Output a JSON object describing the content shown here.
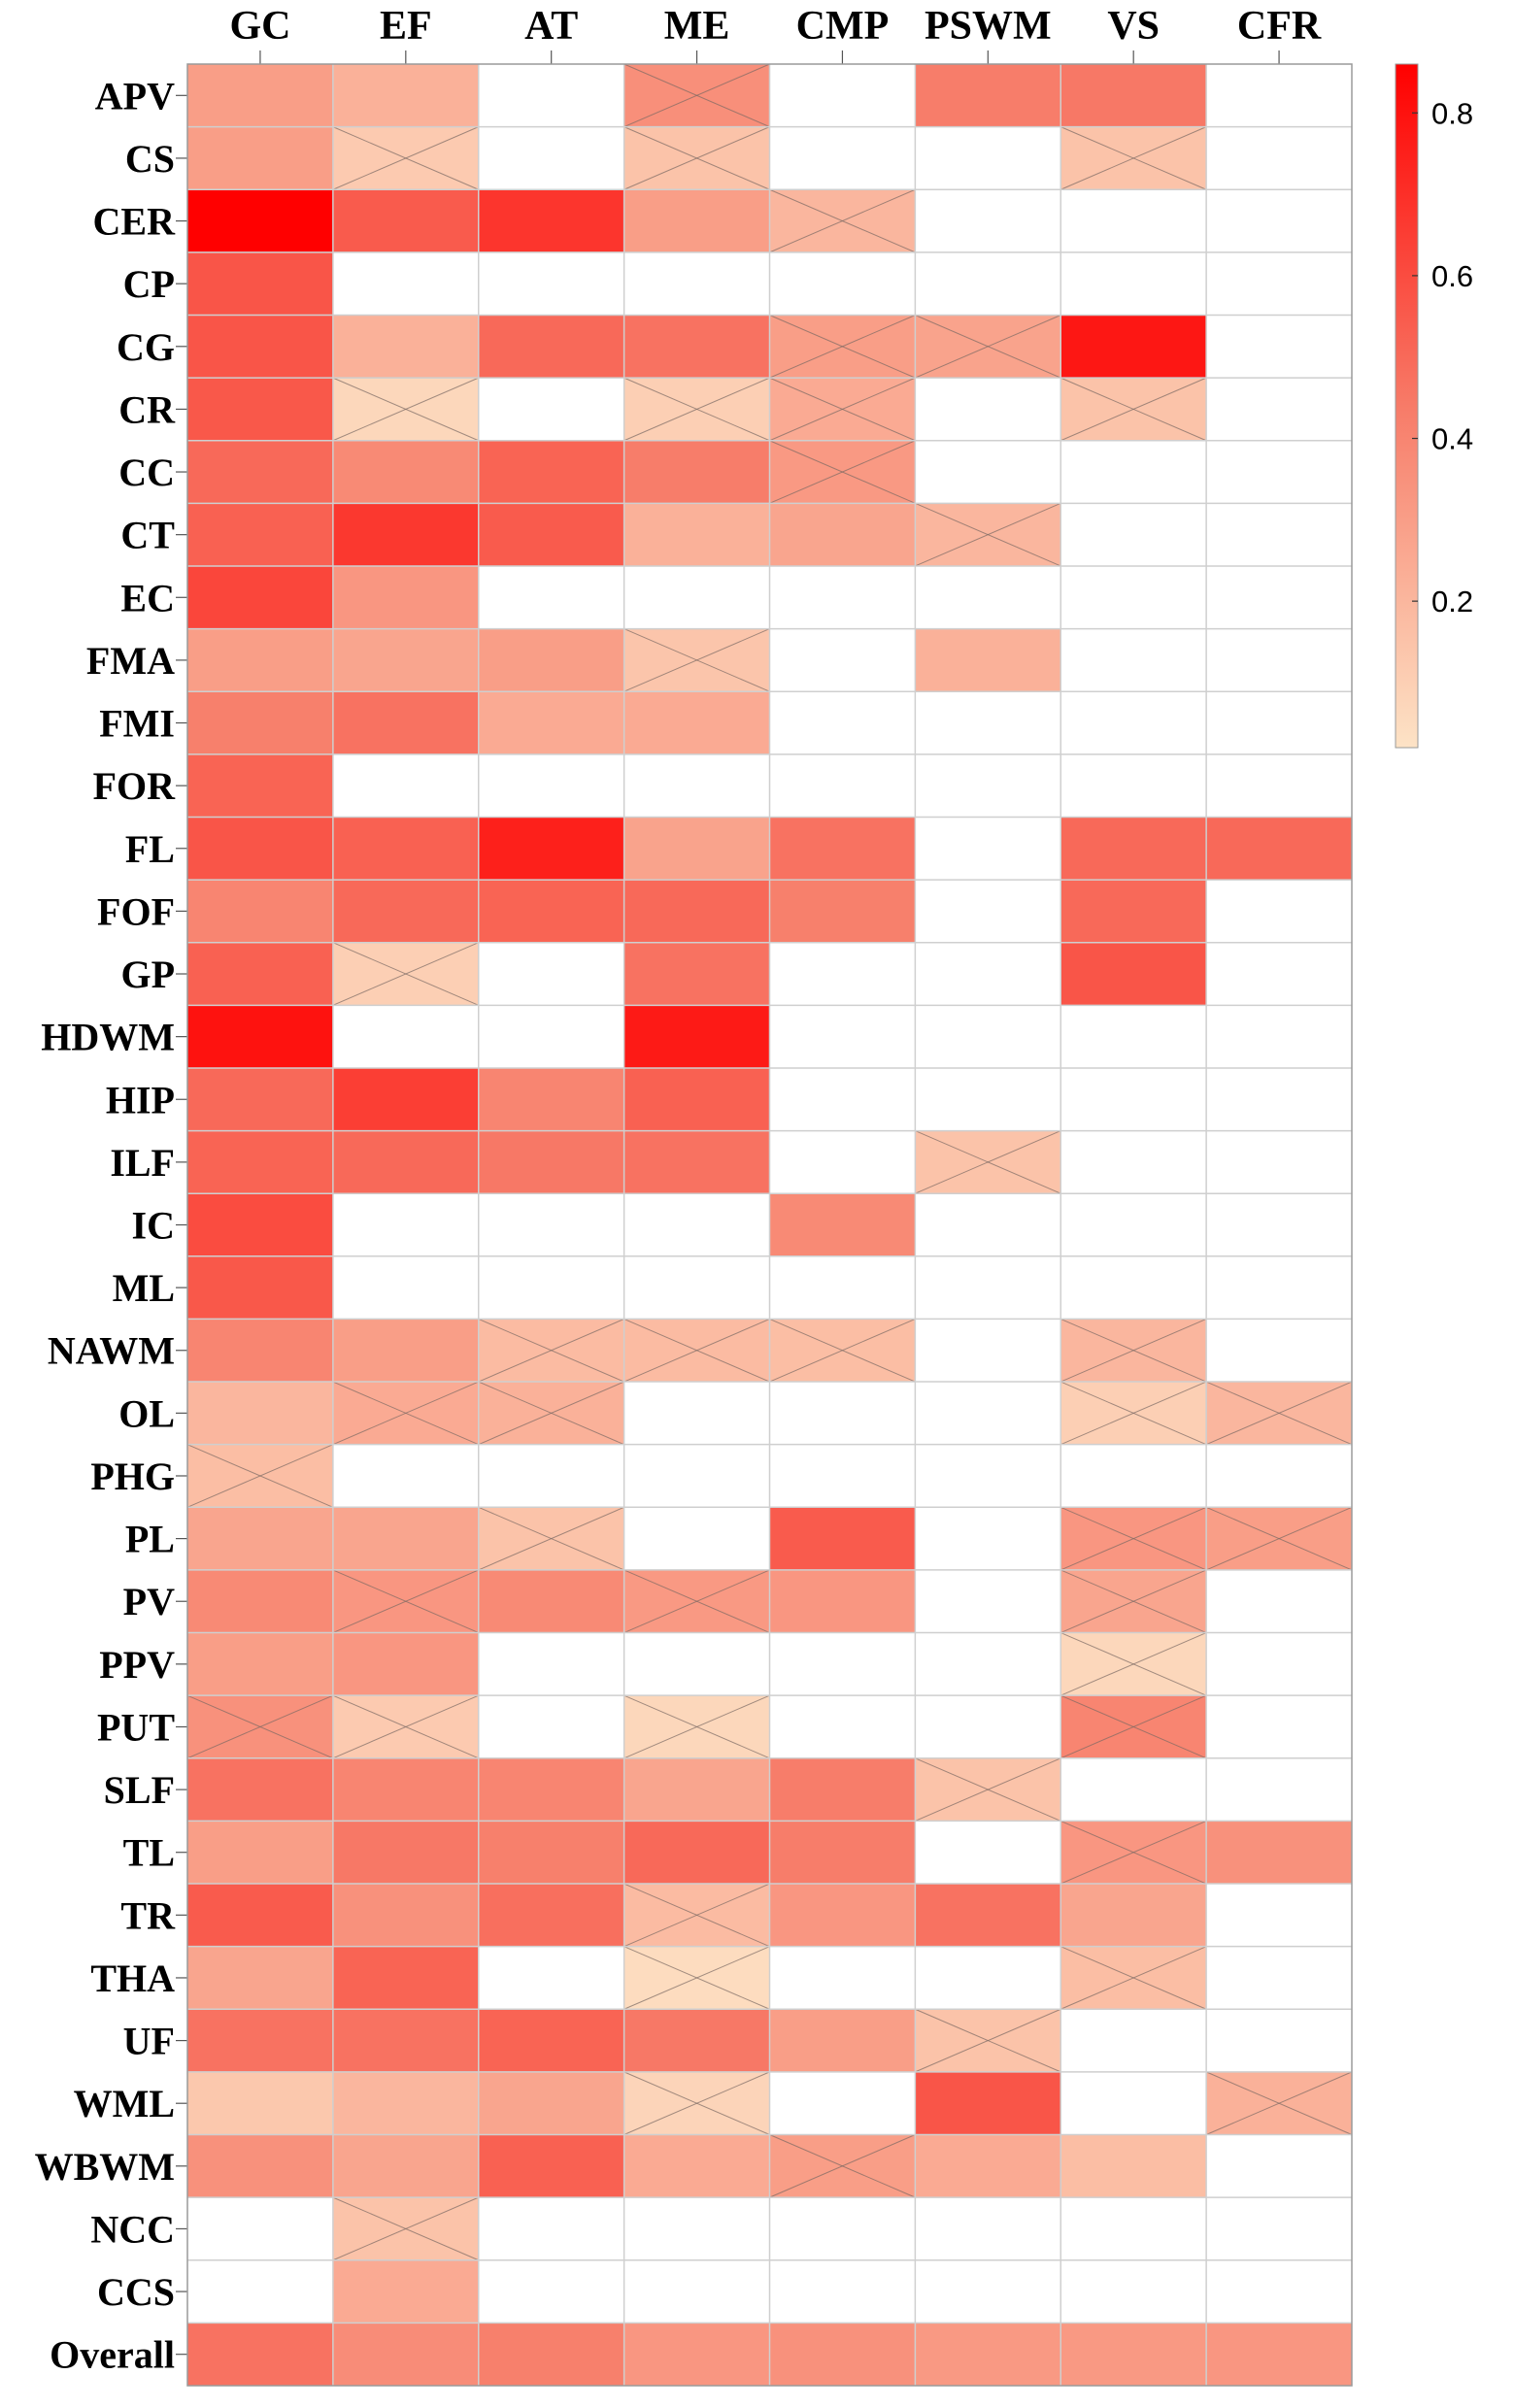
{
  "chart_data": {
    "type": "heatmap",
    "columns": [
      "GC",
      "EF",
      "AT",
      "ME",
      "CMP",
      "PSWM",
      "VS",
      "CFR"
    ],
    "rows": [
      "APV",
      "CS",
      "CER",
      "CP",
      "CG",
      "CR",
      "CC",
      "CT",
      "EC",
      "FMA",
      "FMI",
      "FOR",
      "FL",
      "FOF",
      "GP",
      "HDWM",
      "HIP",
      "ILF",
      "IC",
      "ML",
      "NAWM",
      "OL",
      "PHG",
      "PL",
      "PV",
      "PPV",
      "PUT",
      "SLF",
      "TL",
      "TR",
      "THA",
      "UF",
      "WML",
      "WBWM",
      "NCC",
      "CCS",
      "Overall"
    ],
    "values": [
      [
        0.3,
        0.22,
        null,
        0.36,
        null,
        0.43,
        0.45,
        null
      ],
      [
        0.3,
        0.12,
        null,
        0.15,
        null,
        null,
        0.15,
        null
      ],
      [
        0.86,
        0.55,
        0.68,
        0.3,
        0.2,
        null,
        null,
        null
      ],
      [
        0.57,
        null,
        null,
        null,
        null,
        null,
        null,
        null
      ],
      [
        0.57,
        0.22,
        0.5,
        0.47,
        0.3,
        0.28,
        0.78,
        null
      ],
      [
        0.56,
        0.07,
        null,
        0.1,
        0.25,
        null,
        0.15,
        null
      ],
      [
        0.5,
        0.38,
        0.52,
        0.43,
        0.32,
        null,
        null,
        null
      ],
      [
        0.53,
        0.67,
        0.55,
        0.22,
        0.27,
        0.2,
        null,
        null
      ],
      [
        0.62,
        0.33,
        null,
        null,
        null,
        null,
        null,
        null
      ],
      [
        0.3,
        0.27,
        0.3,
        0.14,
        null,
        0.22,
        null,
        null
      ],
      [
        0.42,
        0.47,
        0.25,
        0.25,
        null,
        null,
        null,
        null
      ],
      [
        0.52,
        null,
        null,
        null,
        null,
        null,
        null,
        null
      ],
      [
        0.57,
        0.53,
        0.75,
        0.28,
        0.47,
        null,
        0.5,
        0.5
      ],
      [
        0.4,
        0.5,
        0.52,
        0.5,
        0.42,
        null,
        0.5,
        null
      ],
      [
        0.53,
        0.1,
        null,
        0.47,
        null,
        null,
        0.57,
        null
      ],
      [
        0.8,
        null,
        null,
        0.77,
        null,
        null,
        null,
        null
      ],
      [
        0.5,
        0.65,
        0.4,
        0.53,
        null,
        null,
        null,
        null
      ],
      [
        0.52,
        0.5,
        0.45,
        0.47,
        null,
        0.15,
        null,
        null
      ],
      [
        0.6,
        null,
        null,
        null,
        0.38,
        null,
        null,
        null
      ],
      [
        0.56,
        null,
        null,
        null,
        null,
        null,
        null,
        null
      ],
      [
        0.4,
        0.3,
        0.18,
        0.18,
        0.17,
        null,
        0.2,
        null
      ],
      [
        0.2,
        0.25,
        0.22,
        null,
        null,
        null,
        0.1,
        0.2
      ],
      [
        0.17,
        null,
        null,
        null,
        null,
        null,
        null,
        null
      ],
      [
        0.27,
        0.27,
        0.15,
        null,
        0.55,
        null,
        0.33,
        0.3
      ],
      [
        0.38,
        0.33,
        0.38,
        0.32,
        0.33,
        null,
        0.27,
        null
      ],
      [
        0.3,
        0.33,
        null,
        null,
        null,
        null,
        0.07,
        null
      ],
      [
        0.35,
        0.12,
        null,
        0.07,
        null,
        null,
        0.4,
        null
      ],
      [
        0.47,
        0.4,
        0.4,
        0.27,
        0.43,
        0.15,
        null,
        null
      ],
      [
        0.3,
        0.45,
        0.42,
        0.5,
        0.43,
        null,
        0.33,
        0.35
      ],
      [
        0.55,
        0.35,
        0.48,
        0.18,
        0.33,
        0.47,
        0.27,
        null
      ],
      [
        0.27,
        0.52,
        null,
        0.05,
        null,
        null,
        0.17,
        null
      ],
      [
        0.47,
        0.47,
        0.52,
        0.45,
        0.3,
        0.15,
        null,
        null
      ],
      [
        0.13,
        0.2,
        0.27,
        0.08,
        null,
        0.57,
        null,
        0.22
      ],
      [
        0.35,
        0.27,
        0.53,
        0.25,
        0.3,
        0.25,
        0.17,
        null
      ],
      [
        null,
        0.15,
        null,
        null,
        null,
        null,
        null,
        null
      ],
      [
        null,
        0.25,
        null,
        null,
        null,
        null,
        null,
        null
      ],
      [
        0.47,
        0.37,
        0.42,
        0.33,
        0.35,
        0.32,
        0.32,
        0.33
      ]
    ],
    "crossed": [
      [
        false,
        false,
        false,
        true,
        false,
        false,
        false,
        false
      ],
      [
        false,
        true,
        false,
        true,
        false,
        false,
        true,
        false
      ],
      [
        false,
        false,
        false,
        false,
        true,
        false,
        false,
        false
      ],
      [
        false,
        false,
        false,
        false,
        false,
        false,
        false,
        false
      ],
      [
        false,
        false,
        false,
        false,
        true,
        true,
        false,
        false
      ],
      [
        false,
        true,
        false,
        true,
        true,
        false,
        true,
        false
      ],
      [
        false,
        false,
        false,
        false,
        true,
        false,
        false,
        false
      ],
      [
        false,
        false,
        false,
        false,
        false,
        true,
        false,
        false
      ],
      [
        false,
        false,
        false,
        false,
        false,
        false,
        false,
        false
      ],
      [
        false,
        false,
        false,
        true,
        false,
        false,
        false,
        false
      ],
      [
        false,
        false,
        false,
        false,
        false,
        false,
        false,
        false
      ],
      [
        false,
        false,
        false,
        false,
        false,
        false,
        false,
        false
      ],
      [
        false,
        false,
        false,
        false,
        false,
        false,
        false,
        false
      ],
      [
        false,
        false,
        false,
        false,
        false,
        false,
        false,
        false
      ],
      [
        false,
        true,
        false,
        false,
        false,
        false,
        false,
        false
      ],
      [
        false,
        false,
        false,
        false,
        false,
        false,
        false,
        false
      ],
      [
        false,
        false,
        false,
        false,
        false,
        false,
        false,
        false
      ],
      [
        false,
        false,
        false,
        false,
        false,
        true,
        false,
        false
      ],
      [
        false,
        false,
        false,
        false,
        false,
        false,
        false,
        false
      ],
      [
        false,
        false,
        false,
        false,
        false,
        false,
        false,
        false
      ],
      [
        false,
        false,
        true,
        true,
        true,
        false,
        true,
        false
      ],
      [
        false,
        true,
        true,
        false,
        false,
        false,
        true,
        true
      ],
      [
        true,
        false,
        false,
        false,
        false,
        false,
        false,
        false
      ],
      [
        false,
        false,
        true,
        false,
        false,
        false,
        true,
        true
      ],
      [
        false,
        true,
        false,
        true,
        false,
        false,
        true,
        false
      ],
      [
        false,
        false,
        false,
        false,
        false,
        false,
        true,
        false
      ],
      [
        true,
        true,
        false,
        true,
        false,
        false,
        true,
        false
      ],
      [
        false,
        false,
        false,
        false,
        false,
        true,
        false,
        false
      ],
      [
        false,
        false,
        false,
        false,
        false,
        false,
        true,
        false
      ],
      [
        false,
        false,
        false,
        true,
        false,
        false,
        false,
        false
      ],
      [
        false,
        false,
        false,
        true,
        false,
        false,
        true,
        false
      ],
      [
        false,
        false,
        false,
        false,
        false,
        true,
        false,
        false
      ],
      [
        false,
        false,
        false,
        true,
        false,
        false,
        false,
        true
      ],
      [
        false,
        false,
        false,
        false,
        true,
        false,
        false,
        false
      ],
      [
        false,
        true,
        false,
        false,
        false,
        false,
        false,
        false
      ],
      [
        false,
        false,
        false,
        false,
        false,
        false,
        false,
        false
      ],
      [
        false,
        false,
        false,
        false,
        false,
        false,
        false,
        false
      ]
    ],
    "colorbar": {
      "min": 0.02,
      "max": 0.86,
      "ticks": [
        0.2,
        0.4,
        0.6,
        0.8
      ],
      "tick_labels": [
        "0.2",
        "0.4",
        "0.6",
        "0.8"
      ],
      "color_low": "#fde3c6",
      "color_mid": "#f77b68",
      "color_high": "#ff0000",
      "placement": "right"
    },
    "grid": true
  }
}
